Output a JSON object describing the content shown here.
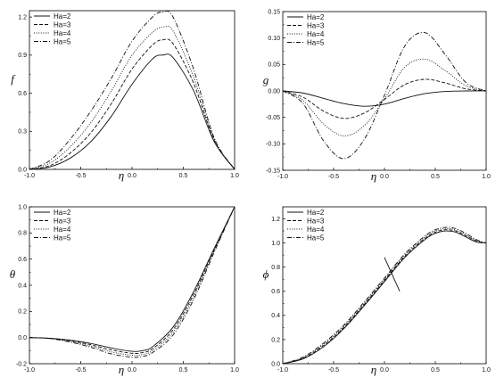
{
  "chart_data": [
    {
      "type": "line",
      "title": "",
      "xlabel": "η",
      "ylabel": "f",
      "xlim": [
        -1.0,
        1.0
      ],
      "ylim": [
        0.0,
        1.25
      ],
      "xticks": [
        "-1.0",
        "-0.5",
        "0.0",
        "0.5",
        "1.0"
      ],
      "xtick_values": [
        -1.0,
        -0.5,
        0.0,
        0.5,
        1.0
      ],
      "yticks": [
        "0.0",
        "0.3",
        "0.6",
        "0.9",
        "1.2"
      ],
      "ytick_values": [
        0.0,
        0.3,
        0.6,
        0.9,
        1.2
      ],
      "grid": false,
      "legend_position": "top-left",
      "series": [
        {
          "name": "Ha=2",
          "style": "solid",
          "x": [
            -1.0,
            -0.8,
            -0.6,
            -0.4,
            -0.2,
            0.0,
            0.2,
            0.3,
            0.4,
            0.6,
            0.8,
            1.0
          ],
          "y": [
            0.0,
            0.02,
            0.09,
            0.22,
            0.42,
            0.67,
            0.87,
            0.9,
            0.88,
            0.62,
            0.22,
            0.0
          ]
        },
        {
          "name": "Ha=3",
          "style": "dashed",
          "x": [
            -1.0,
            -0.8,
            -0.6,
            -0.4,
            -0.2,
            0.0,
            0.2,
            0.3,
            0.4,
            0.6,
            0.8,
            1.0
          ],
          "y": [
            0.0,
            0.03,
            0.13,
            0.29,
            0.52,
            0.79,
            0.98,
            1.02,
            0.99,
            0.68,
            0.23,
            0.0
          ]
        },
        {
          "name": "Ha=4",
          "style": "dotted",
          "x": [
            -1.0,
            -0.8,
            -0.6,
            -0.4,
            -0.2,
            0.0,
            0.2,
            0.3,
            0.4,
            0.6,
            0.8,
            1.0
          ],
          "y": [
            0.0,
            0.05,
            0.18,
            0.37,
            0.62,
            0.9,
            1.08,
            1.12,
            1.09,
            0.73,
            0.24,
            0.0
          ]
        },
        {
          "name": "Ha=5",
          "style": "dashdot",
          "x": [
            -1.0,
            -0.8,
            -0.6,
            -0.4,
            -0.2,
            0.0,
            0.2,
            0.3,
            0.4,
            0.6,
            0.8,
            1.0
          ],
          "y": [
            0.0,
            0.07,
            0.24,
            0.46,
            0.72,
            1.01,
            1.2,
            1.24,
            1.2,
            0.79,
            0.25,
            0.0
          ]
        }
      ]
    },
    {
      "type": "line",
      "title": "",
      "xlabel": "η",
      "ylabel": "g",
      "xlim": [
        -1.0,
        1.0
      ],
      "ylim": [
        -0.15,
        0.15
      ],
      "xticks": [
        "-1.0",
        "-0.5",
        "0.0",
        "0.5",
        "1.0"
      ],
      "xtick_values": [
        -1.0,
        -0.5,
        0.0,
        0.5,
        1.0
      ],
      "yticks": [
        "-0.15",
        "-0.10",
        "-0.05",
        "0.00",
        "0.05",
        "0.10",
        "0.15"
      ],
      "ytick_values": [
        -0.15,
        -0.1,
        -0.05,
        0.0,
        0.05,
        0.1,
        0.15
      ],
      "grid": false,
      "legend_position": "top-left",
      "series": [
        {
          "name": "Ha=2",
          "style": "solid",
          "x": [
            -1.0,
            -0.8,
            -0.6,
            -0.4,
            -0.2,
            0.0,
            0.2,
            0.4,
            0.6,
            0.8,
            1.0
          ],
          "y": [
            0.0,
            -0.004,
            -0.014,
            -0.024,
            -0.029,
            -0.025,
            -0.014,
            -0.005,
            -0.001,
            0.0,
            0.0
          ]
        },
        {
          "name": "Ha=3",
          "style": "dashed",
          "x": [
            -1.0,
            -0.8,
            -0.6,
            -0.4,
            -0.2,
            0.0,
            0.2,
            0.4,
            0.6,
            0.8,
            1.0
          ],
          "y": [
            0.0,
            -0.012,
            -0.038,
            -0.052,
            -0.042,
            -0.016,
            0.012,
            0.022,
            0.015,
            0.004,
            0.0
          ]
        },
        {
          "name": "Ha=4",
          "style": "dotted",
          "x": [
            -1.0,
            -0.8,
            -0.6,
            -0.4,
            -0.2,
            0.0,
            0.2,
            0.4,
            0.6,
            0.8,
            1.0
          ],
          "y": [
            0.0,
            -0.018,
            -0.062,
            -0.085,
            -0.066,
            -0.015,
            0.045,
            0.06,
            0.038,
            0.01,
            0.0
          ]
        },
        {
          "name": "Ha=5",
          "style": "dashdot",
          "x": [
            -1.0,
            -0.8,
            -0.6,
            -0.4,
            -0.2,
            0.0,
            0.2,
            0.4,
            0.6,
            0.8,
            1.0
          ],
          "y": [
            0.0,
            -0.024,
            -0.094,
            -0.128,
            -0.092,
            -0.008,
            0.085,
            0.11,
            0.068,
            0.016,
            0.0
          ]
        }
      ]
    },
    {
      "type": "line",
      "title": "",
      "xlabel": "η",
      "ylabel": "θ",
      "xlim": [
        -1.0,
        1.0
      ],
      "ylim": [
        -0.2,
        1.0
      ],
      "xticks": [
        "-1.0",
        "-0.5",
        "0.0",
        "0.5",
        "1.0"
      ],
      "xtick_values": [
        -1.0,
        -0.5,
        0.0,
        0.5,
        1.0
      ],
      "yticks": [
        "-0.2",
        "0.0",
        "0.2",
        "0.4",
        "0.6",
        "0.8",
        "1.0"
      ],
      "ytick_values": [
        -0.2,
        0.0,
        0.2,
        0.4,
        0.6,
        0.8,
        1.0
      ],
      "grid": false,
      "legend_position": "top-left",
      "series": [
        {
          "name": "Ha=2",
          "style": "solid",
          "x": [
            -1.0,
            -0.8,
            -0.6,
            -0.4,
            -0.2,
            0.0,
            0.1,
            0.2,
            0.4,
            0.6,
            0.8,
            1.0
          ],
          "y": [
            0.0,
            -0.005,
            -0.02,
            -0.045,
            -0.08,
            -0.105,
            -0.1,
            -0.07,
            0.08,
            0.35,
            0.68,
            1.0
          ]
        },
        {
          "name": "Ha=3",
          "style": "dashed",
          "x": [
            -1.0,
            -0.8,
            -0.6,
            -0.4,
            -0.2,
            0.0,
            0.1,
            0.2,
            0.4,
            0.6,
            0.8,
            1.0
          ],
          "y": [
            0.0,
            -0.006,
            -0.025,
            -0.055,
            -0.095,
            -0.12,
            -0.115,
            -0.085,
            0.06,
            0.33,
            0.67,
            1.0
          ]
        },
        {
          "name": "Ha=4",
          "style": "dotted",
          "x": [
            -1.0,
            -0.8,
            -0.6,
            -0.4,
            -0.2,
            0.0,
            0.1,
            0.2,
            0.4,
            0.6,
            0.8,
            1.0
          ],
          "y": [
            0.0,
            -0.007,
            -0.03,
            -0.065,
            -0.11,
            -0.135,
            -0.13,
            -0.1,
            0.04,
            0.31,
            0.66,
            1.0
          ]
        },
        {
          "name": "Ha=5",
          "style": "dashdot",
          "x": [
            -1.0,
            -0.8,
            -0.6,
            -0.4,
            -0.2,
            0.0,
            0.1,
            0.2,
            0.4,
            0.6,
            0.8,
            1.0
          ],
          "y": [
            0.0,
            -0.008,
            -0.035,
            -0.075,
            -0.125,
            -0.15,
            -0.145,
            -0.115,
            0.02,
            0.29,
            0.65,
            1.0
          ]
        }
      ]
    },
    {
      "type": "line",
      "title": "",
      "xlabel": "η",
      "ylabel": "ϕ",
      "xlim": [
        -1.0,
        1.0
      ],
      "ylim": [
        0.0,
        1.3
      ],
      "xticks": [
        "-1.0",
        "-0.5",
        "0.0",
        "0.5",
        "1.0"
      ],
      "xtick_values": [
        -1.0,
        -0.5,
        0.0,
        0.5,
        1.0
      ],
      "yticks": [
        "0.0",
        "0.2",
        "0.4",
        "0.6",
        "0.8",
        "1.0",
        "1.2"
      ],
      "ytick_values": [
        0.0,
        0.2,
        0.4,
        0.6,
        0.8,
        1.0,
        1.2
      ],
      "grid": false,
      "legend_position": "top-left",
      "annotation": "arrow",
      "series": [
        {
          "name": "Ha=2",
          "style": "solid",
          "x": [
            -1.0,
            -0.8,
            -0.6,
            -0.4,
            -0.2,
            0.0,
            0.2,
            0.4,
            0.5,
            0.6,
            0.7,
            0.8,
            0.9,
            1.0
          ],
          "y": [
            0.0,
            0.04,
            0.14,
            0.29,
            0.48,
            0.68,
            0.88,
            1.03,
            1.08,
            1.1,
            1.09,
            1.05,
            1.01,
            1.0
          ]
        },
        {
          "name": "Ha=3",
          "style": "dashed",
          "x": [
            -1.0,
            -0.8,
            -0.6,
            -0.4,
            -0.2,
            0.0,
            0.2,
            0.4,
            0.5,
            0.6,
            0.7,
            0.8,
            0.9,
            1.0
          ],
          "y": [
            0.0,
            0.045,
            0.15,
            0.3,
            0.49,
            0.69,
            0.89,
            1.04,
            1.09,
            1.11,
            1.1,
            1.06,
            1.02,
            1.0
          ]
        },
        {
          "name": "Ha=4",
          "style": "dotted",
          "x": [
            -1.0,
            -0.8,
            -0.6,
            -0.4,
            -0.2,
            0.0,
            0.2,
            0.4,
            0.5,
            0.6,
            0.7,
            0.8,
            0.9,
            1.0
          ],
          "y": [
            0.0,
            0.05,
            0.16,
            0.31,
            0.5,
            0.7,
            0.9,
            1.05,
            1.1,
            1.12,
            1.11,
            1.07,
            1.02,
            1.0
          ]
        },
        {
          "name": "Ha=5",
          "style": "dashdot",
          "x": [
            -1.0,
            -0.8,
            -0.6,
            -0.4,
            -0.2,
            0.0,
            0.2,
            0.4,
            0.5,
            0.6,
            0.7,
            0.8,
            0.9,
            1.0
          ],
          "y": [
            0.0,
            0.055,
            0.17,
            0.32,
            0.51,
            0.71,
            0.91,
            1.06,
            1.11,
            1.13,
            1.12,
            1.08,
            1.03,
            1.0
          ]
        }
      ]
    }
  ]
}
